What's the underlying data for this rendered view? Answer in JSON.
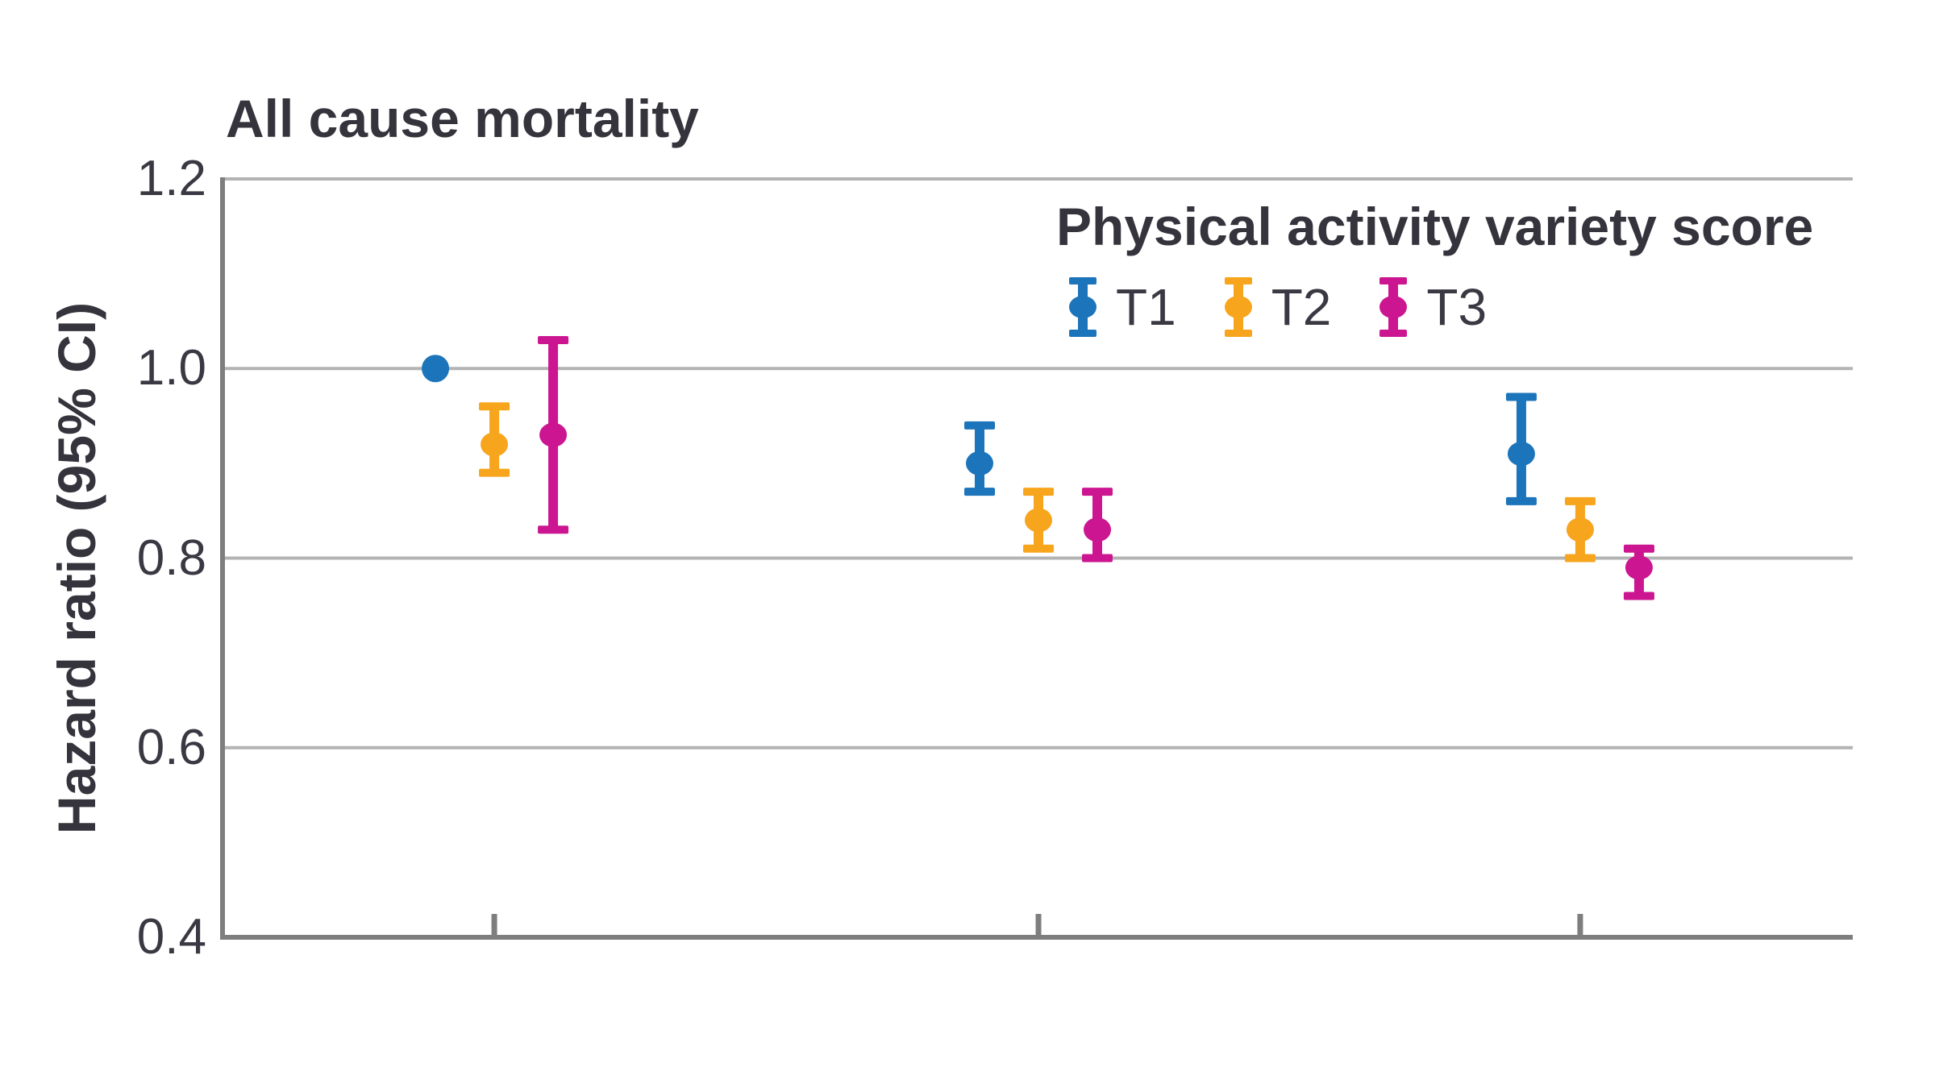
{
  "chart_data": {
    "type": "errorbar",
    "title": "All cause mortality",
    "ylabel": "Hazard ratio (95% CI)",
    "xlabel": "",
    "ylim": [
      0.4,
      1.2
    ],
    "y_ticks": [
      {
        "label": "1.2",
        "value": 1.2
      },
      {
        "label": "1.0",
        "value": 1.0
      },
      {
        "label": "0.8",
        "value": 0.8
      },
      {
        "label": "0.6",
        "value": 0.6
      },
      {
        "label": "0.4",
        "value": 0.4
      }
    ],
    "x_groups": 3,
    "x_group_labels": [
      "",
      "",
      ""
    ],
    "grid": "horizontal",
    "legend_position": "top-right",
    "legend_title": "Physical activity variety score",
    "series": [
      {
        "name": "T1",
        "color": "#1c74ba",
        "points": [
          {
            "group": 0,
            "hr": 1.0,
            "lo": null,
            "hi": null,
            "reference": true
          },
          {
            "group": 1,
            "hr": 0.9,
            "lo": 0.87,
            "hi": 0.94,
            "reference": false
          },
          {
            "group": 2,
            "hr": 0.91,
            "lo": 0.86,
            "hi": 0.97,
            "reference": false
          }
        ]
      },
      {
        "name": "T2",
        "color": "#f7a51c",
        "points": [
          {
            "group": 0,
            "hr": 0.92,
            "lo": 0.89,
            "hi": 0.96,
            "reference": false
          },
          {
            "group": 1,
            "hr": 0.84,
            "lo": 0.81,
            "hi": 0.87,
            "reference": false
          },
          {
            "group": 2,
            "hr": 0.83,
            "lo": 0.8,
            "hi": 0.86,
            "reference": false
          }
        ]
      },
      {
        "name": "T3",
        "color": "#cc1590",
        "points": [
          {
            "group": 0,
            "hr": 0.93,
            "lo": 0.83,
            "hi": 1.03,
            "reference": false
          },
          {
            "group": 1,
            "hr": 0.83,
            "lo": 0.8,
            "hi": 0.87,
            "reference": false
          },
          {
            "group": 2,
            "hr": 0.79,
            "lo": 0.76,
            "hi": 0.81,
            "reference": false
          }
        ]
      }
    ],
    "colors": {
      "gridline": "#b3b3b3",
      "axis": "#7e7e7e",
      "text_dark": "#35343d",
      "text_tick": "#3a3943",
      "background": "#ffffff"
    }
  }
}
